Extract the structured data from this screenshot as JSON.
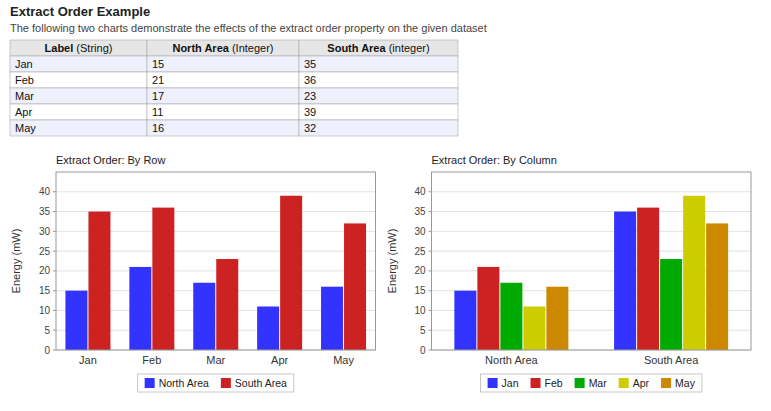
{
  "title": "Extract Order Example",
  "subtitle": "The following two charts demonstrate the effects of the extract order property on the given dataset",
  "table": {
    "headers": [
      [
        "Label",
        " (String)"
      ],
      [
        "North Area",
        " (Integer)"
      ],
      [
        "South Area",
        " (integer)"
      ]
    ],
    "rows": [
      [
        "Jan",
        "15",
        "35"
      ],
      [
        "Feb",
        "21",
        "36"
      ],
      [
        "Mar",
        "17",
        "23"
      ],
      [
        "Apr",
        "11",
        "39"
      ],
      [
        "May",
        "16",
        "32"
      ]
    ]
  },
  "chart_data": [
    {
      "type": "bar",
      "title": "Extract Order: By Row",
      "ylabel": "Energy (mW)",
      "categories": [
        "Jan",
        "Feb",
        "Mar",
        "Apr",
        "May"
      ],
      "series": [
        {
          "name": "North Area",
          "color": "#3333FF",
          "values": [
            15,
            21,
            17,
            11,
            16
          ]
        },
        {
          "name": "South Area",
          "color": "#CC2222",
          "values": [
            35,
            36,
            23,
            39,
            32
          ]
        }
      ],
      "ylim": [
        0,
        45
      ],
      "yticks": [
        0,
        5,
        10,
        15,
        20,
        25,
        30,
        35,
        40
      ],
      "grid": true,
      "legend": "bottom"
    },
    {
      "type": "bar",
      "title": "Extract Order: By Column",
      "ylabel": "Energy (mW)",
      "categories": [
        "North Area",
        "South Area"
      ],
      "series": [
        {
          "name": "Jan",
          "color": "#3333FF",
          "values": [
            15,
            35
          ]
        },
        {
          "name": "Feb",
          "color": "#CC2222",
          "values": [
            21,
            36
          ]
        },
        {
          "name": "Mar",
          "color": "#00AA00",
          "values": [
            17,
            23
          ]
        },
        {
          "name": "Apr",
          "color": "#CCCC00",
          "values": [
            11,
            39
          ]
        },
        {
          "name": "May",
          "color": "#CC8800",
          "values": [
            16,
            32
          ]
        }
      ],
      "ylim": [
        0,
        45
      ],
      "yticks": [
        0,
        5,
        10,
        15,
        20,
        25,
        30,
        35,
        40
      ],
      "grid": true,
      "legend": "bottom"
    }
  ]
}
